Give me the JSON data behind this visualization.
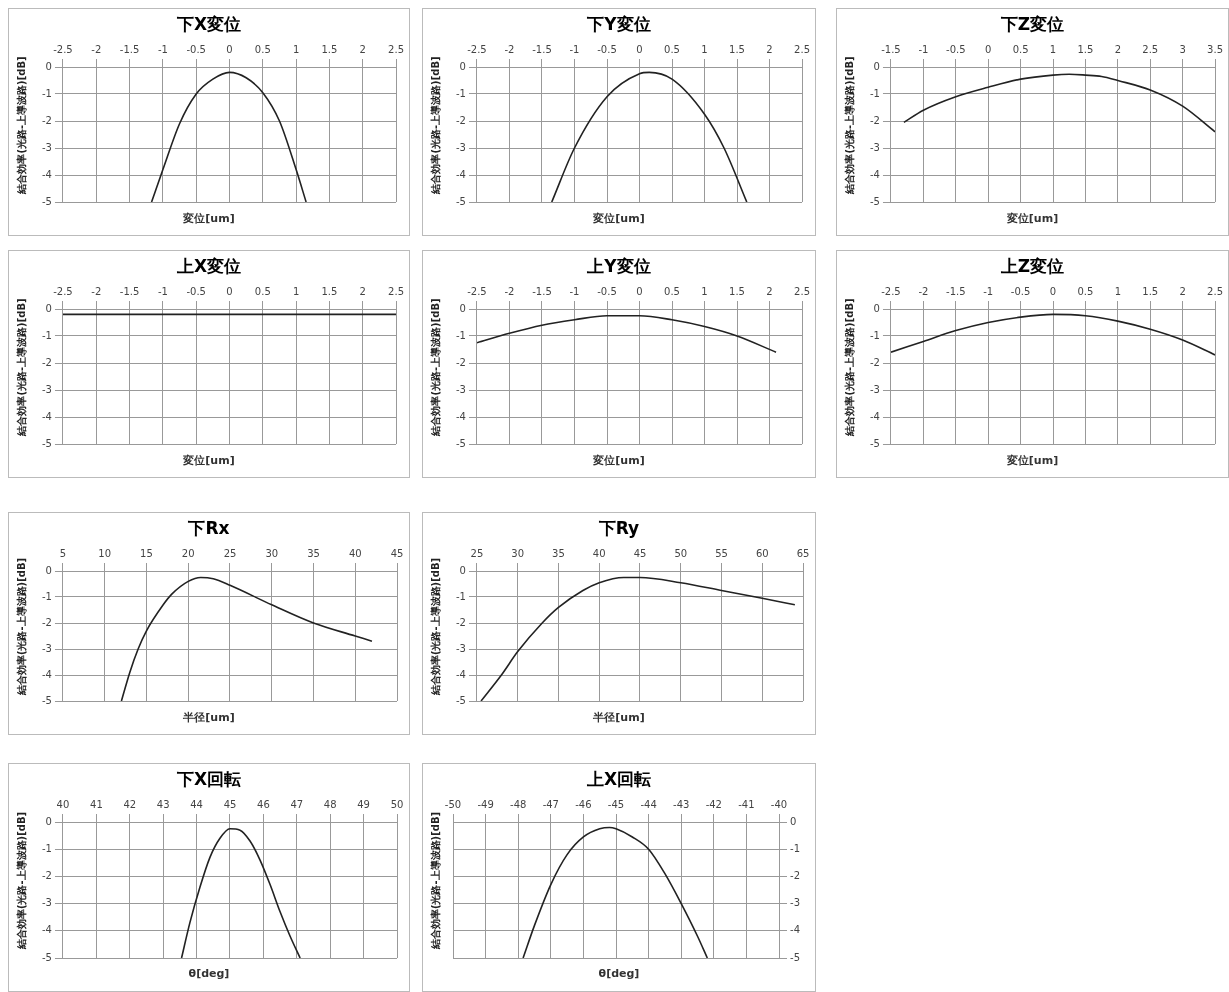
{
  "chart_data": [
    {
      "type": "line",
      "title": "下X変位",
      "xlabel": "変位[um]",
      "ylabel": "結合効率(光路-上導波路)[dB]",
      "xlim": [
        -2.5,
        2.5
      ],
      "xticks": [
        -2.5,
        -2,
        -1.5,
        -1,
        -0.5,
        0,
        0.5,
        1,
        1.5,
        2,
        2.5
      ],
      "ylim": [
        -5,
        0
      ],
      "yticks": [
        -5,
        -4,
        -3,
        -2,
        -1,
        0
      ],
      "grid": true,
      "color": "#222222",
      "x": [
        -1.17,
        -1,
        -0.75,
        -0.5,
        -0.25,
        0,
        0.25,
        0.5,
        0.75,
        1,
        1.15
      ],
      "values": [
        -5,
        -3.8,
        -2.1,
        -1,
        -0.45,
        -0.2,
        -0.4,
        -0.95,
        -2,
        -3.8,
        -5
      ]
    },
    {
      "type": "line",
      "title": "下Y変位",
      "xlabel": "変位[um]",
      "ylabel": "結合効率(光路-上導波路)[dB]",
      "xlim": [
        -2.5,
        2.5
      ],
      "xticks": [
        -2.5,
        -2,
        -1.5,
        -1,
        -0.5,
        0,
        0.5,
        1,
        1.5,
        2,
        2.5
      ],
      "ylim": [
        -5,
        0
      ],
      "yticks": [
        -5,
        -4,
        -3,
        -2,
        -1,
        0
      ],
      "grid": true,
      "color": "#222222",
      "x": [
        -1.35,
        -1,
        -0.5,
        0,
        0.15,
        0.5,
        1,
        1.3,
        1.65
      ],
      "values": [
        -5,
        -3,
        -1.1,
        -0.25,
        -0.2,
        -0.45,
        -1.75,
        -3,
        -5
      ]
    },
    {
      "type": "line",
      "title": "下Z変位",
      "xlabel": "変位[um]",
      "ylabel": "結合効率(光路-上導波路)[dB]",
      "xlim": [
        -1.5,
        3.5
      ],
      "xticks": [
        -1.5,
        -1,
        -0.5,
        0,
        0.5,
        1,
        1.5,
        2,
        2.5,
        3,
        3.5
      ],
      "ylim": [
        -5,
        0
      ],
      "yticks": [
        -5,
        -4,
        -3,
        -2,
        -1,
        0
      ],
      "grid": true,
      "color": "#222222",
      "x": [
        -1.3,
        -1,
        -0.5,
        0,
        0.5,
        1,
        1.25,
        1.5,
        1.75,
        2,
        2.5,
        3,
        3.5
      ],
      "values": [
        -2.05,
        -1.6,
        -1.1,
        -0.75,
        -0.45,
        -0.3,
        -0.27,
        -0.3,
        -0.35,
        -0.5,
        -0.85,
        -1.45,
        -2.4
      ]
    },
    {
      "type": "line",
      "title": "上X変位",
      "xlabel": "変位[um]",
      "ylabel": "結合効率(光路-上導波路)[dB]",
      "xlim": [
        -2.5,
        2.5
      ],
      "xticks": [
        -2.5,
        -2,
        -1.5,
        -1,
        -0.5,
        0,
        0.5,
        1,
        1.5,
        2,
        2.5
      ],
      "ylim": [
        -5,
        0
      ],
      "yticks": [
        -5,
        -4,
        -3,
        -2,
        -1,
        0
      ],
      "grid": true,
      "color": "#222222",
      "x": [
        -2.5,
        -1.5,
        -0.5,
        0.5,
        1.5,
        2.5
      ],
      "values": [
        -0.2,
        -0.2,
        -0.2,
        -0.2,
        -0.2,
        -0.2
      ]
    },
    {
      "type": "line",
      "title": "上Y変位",
      "xlabel": "変位[um]",
      "ylabel": "結合効率(光路-上導波路)[dB]",
      "xlim": [
        -2.5,
        2.5
      ],
      "xticks": [
        -2.5,
        -2,
        -1.5,
        -1,
        -0.5,
        0,
        0.5,
        1,
        1.5,
        2,
        2.5
      ],
      "ylim": [
        -5,
        0
      ],
      "yticks": [
        -5,
        -4,
        -3,
        -2,
        -1,
        0
      ],
      "grid": true,
      "color": "#222222",
      "x": [
        -2.5,
        -2,
        -1.5,
        -1,
        -0.5,
        0,
        0.5,
        1,
        1.5,
        2.1
      ],
      "values": [
        -1.25,
        -0.9,
        -0.6,
        -0.4,
        -0.25,
        -0.25,
        -0.4,
        -0.65,
        -1,
        -1.6
      ]
    },
    {
      "type": "line",
      "title": "上Z変位",
      "xlabel": "変位[um]",
      "ylabel": "結合効率(光路-上導波路)[dB]",
      "xlim": [
        -2.5,
        2.5
      ],
      "xticks": [
        -2.5,
        -2,
        -1.5,
        -1,
        -0.5,
        0,
        0.5,
        1,
        1.5,
        2,
        2.5
      ],
      "ylim": [
        -5,
        0
      ],
      "yticks": [
        -5,
        -4,
        -3,
        -2,
        -1,
        0
      ],
      "grid": true,
      "color": "#222222",
      "x": [
        -2.5,
        -2,
        -1.5,
        -1,
        -0.5,
        0,
        0.5,
        1,
        1.5,
        2,
        2.5
      ],
      "values": [
        -1.6,
        -1.2,
        -0.8,
        -0.5,
        -0.3,
        -0.2,
        -0.25,
        -0.45,
        -0.75,
        -1.15,
        -1.7
      ]
    },
    {
      "type": "line",
      "title": "下Rx",
      "xlabel": "半径[um]",
      "ylabel": "結合効率(光路-上導波路)[dB]",
      "xlim": [
        5,
        45
      ],
      "xticks": [
        5,
        10,
        15,
        20,
        25,
        30,
        35,
        40,
        45
      ],
      "ylim": [
        -5,
        0
      ],
      "yticks": [
        -5,
        -4,
        -3,
        -2,
        -1,
        0
      ],
      "grid": true,
      "color": "#222222",
      "x": [
        12,
        13,
        14,
        15,
        17,
        18,
        20,
        21.5,
        23,
        25,
        30,
        35,
        40,
        42
      ],
      "values": [
        -5,
        -3.9,
        -3,
        -2.3,
        -1.3,
        -0.9,
        -0.4,
        -0.25,
        -0.3,
        -0.55,
        -1.3,
        -2,
        -2.5,
        -2.7
      ]
    },
    {
      "type": "line",
      "title": "下Ry",
      "xlabel": "半径[um]",
      "ylabel": "結合効率(光路-上導波路)[dB]",
      "xlim": [
        25,
        65
      ],
      "xticks": [
        25,
        30,
        35,
        40,
        45,
        50,
        55,
        60,
        65
      ],
      "ylim": [
        -5,
        0
      ],
      "yticks": [
        -5,
        -4,
        -3,
        -2,
        -1,
        0
      ],
      "grid": true,
      "color": "#222222",
      "x": [
        25.5,
        28,
        30,
        33,
        35,
        38,
        40,
        43,
        45,
        50,
        55,
        60,
        64
      ],
      "values": [
        -5,
        -4,
        -3.1,
        -2,
        -1.4,
        -0.75,
        -0.45,
        -0.25,
        -0.25,
        -0.45,
        -0.75,
        -1.05,
        -1.3
      ]
    },
    {
      "type": "line",
      "title": "下X回転",
      "xlabel": "θ[deg]",
      "ylabel": "結合効率(光路-上導波路)[dB]",
      "xlim": [
        40,
        50
      ],
      "xticks": [
        40,
        41,
        42,
        43,
        44,
        45,
        46,
        47,
        48,
        49,
        50
      ],
      "ylim": [
        -5,
        0
      ],
      "yticks": [
        -5,
        -4,
        -3,
        -2,
        -1,
        0
      ],
      "grid": true,
      "color": "#222222",
      "x": [
        43.55,
        43.8,
        44.1,
        44.4,
        44.7,
        45,
        45.3,
        45.6,
        45.9,
        46.2,
        46.5,
        46.8,
        47.1
      ],
      "values": [
        -5,
        -3.7,
        -2.4,
        -1.3,
        -0.6,
        -0.25,
        -0.3,
        -0.7,
        -1.4,
        -2.3,
        -3.3,
        -4.2,
        -5
      ]
    },
    {
      "type": "line",
      "title": "上X回転",
      "xlabel": "θ[deg]",
      "ylabel": "結合効率(光路-上導波路)[dB]",
      "xlim": [
        -50,
        -40
      ],
      "xticks": [
        -50,
        -49,
        -48,
        -47,
        -46,
        -45,
        -44,
        -43,
        -42,
        -41,
        -40
      ],
      "y2lim": [
        -5,
        0
      ],
      "y2ticks": [
        -5,
        -4,
        -3,
        -2,
        -1,
        0
      ],
      "grid": true,
      "x": [
        -47.85,
        -47.5,
        -47,
        -46.5,
        -46,
        -45.5,
        -45.2,
        -45,
        -44.5,
        -44,
        -43.5,
        -43,
        -42.5,
        -42.2
      ],
      "series": [
        {
          "color": "#222222",
          "axis": "y2",
          "values": [
            -5,
            -3.8,
            -2.3,
            -1.2,
            -0.55,
            -0.25,
            -0.2,
            -0.25,
            -0.55,
            -1,
            -1.9,
            -3,
            -4.2,
            -5
          ]
        }
      ]
    }
  ]
}
